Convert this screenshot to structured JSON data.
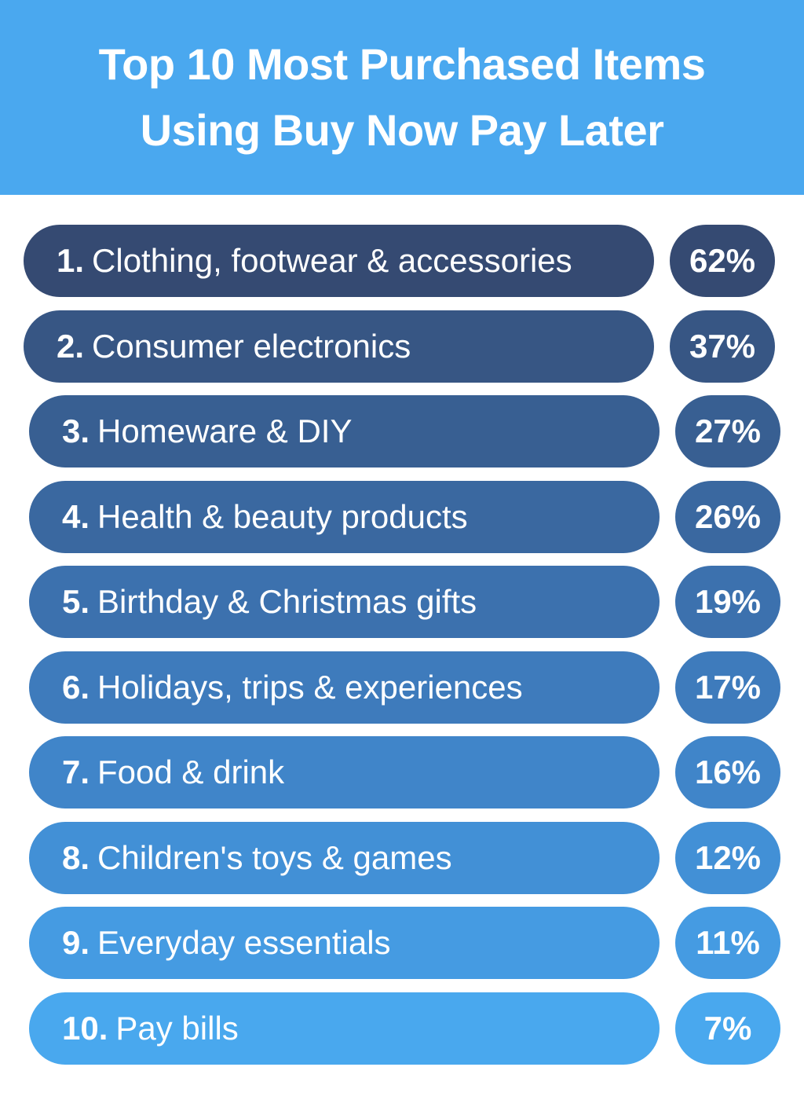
{
  "header": {
    "title_line1": "Top 10 Most Purchased Items",
    "title_line2": "Using Buy Now Pay Later",
    "color": "#4aa8ef"
  },
  "chart_data": {
    "type": "table",
    "title": "Top 10 Most Purchased Items Using Buy Now Pay Later",
    "columns": [
      "rank",
      "item",
      "percent"
    ],
    "rows": [
      {
        "rank": "1.",
        "item": "Clothing, footwear & accessories",
        "value": "62%",
        "percent": 62,
        "color": "#354a72"
      },
      {
        "rank": "2.",
        "item": "Consumer electronics",
        "value": "37%",
        "percent": 37,
        "color": "#375684"
      },
      {
        "rank": "3.",
        "item": "Homeware & DIY",
        "value": "27%",
        "percent": 27,
        "color": "#385f92"
      },
      {
        "rank": "4.",
        "item": "Health & beauty products",
        "value": "26%",
        "percent": 26,
        "color": "#3a68a0"
      },
      {
        "rank": "5.",
        "item": "Birthday & Christmas gifts",
        "value": "19%",
        "percent": 19,
        "color": "#3c71ae"
      },
      {
        "rank": "6.",
        "item": "Holidays, trips & experiences",
        "value": "17%",
        "percent": 17,
        "color": "#3e7bbc"
      },
      {
        "rank": "7.",
        "item": "Food & drink",
        "value": "16%",
        "percent": 16,
        "color": "#4085c9"
      },
      {
        "rank": "8.",
        "item": "Children's toys & games",
        "value": "12%",
        "percent": 12,
        "color": "#4290d6"
      },
      {
        "rank": "9.",
        "item": "Everyday essentials",
        "value": "11%",
        "percent": 11,
        "color": "#459be2"
      },
      {
        "rank": "10.",
        "item": "Pay bills",
        "value": "7%",
        "percent": 7,
        "color": "#49a8ee"
      }
    ]
  }
}
